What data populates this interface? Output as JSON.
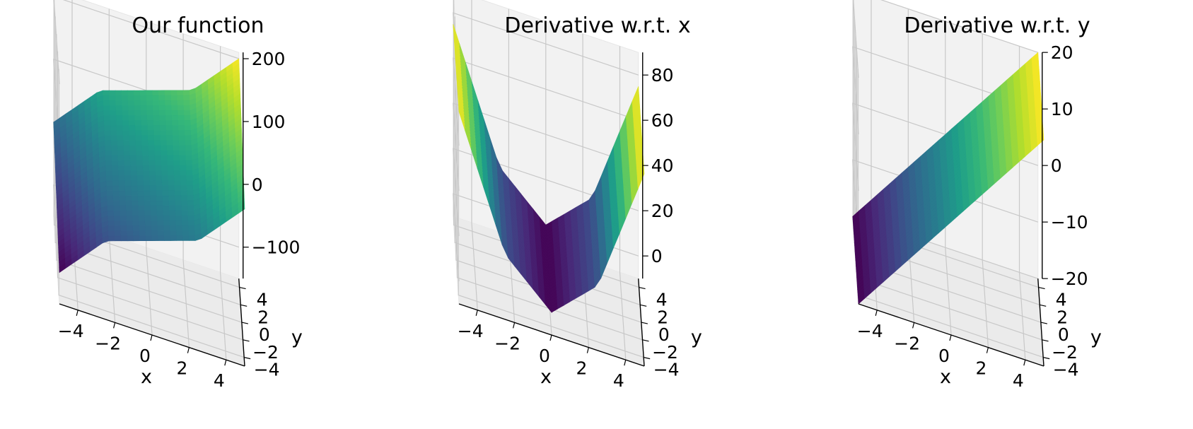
{
  "chart_data": [
    {
      "type": "surface3d",
      "title": "Our function",
      "xlabel": "x",
      "ylabel": "y",
      "zlabel": "",
      "xlim": [
        -5,
        5
      ],
      "ylim": [
        -5,
        5
      ],
      "zlim": [
        -150,
        210
      ],
      "xticks": [
        -4,
        -2,
        0,
        2,
        4
      ],
      "yticks": [
        -4,
        -2,
        0,
        2,
        4
      ],
      "zticks": [
        -100,
        0,
        100,
        200
      ],
      "xtick_labels": [
        "−4",
        "−2",
        "0",
        "2",
        "4"
      ],
      "ytick_labels": [
        "−4",
        "−2",
        "0",
        "2",
        "4"
      ],
      "ztick_labels": [
        "−100",
        "0",
        "100",
        "200"
      ],
      "grid": true,
      "colormap": "viridis",
      "surface": {
        "x": [
          -5,
          -2.5,
          0,
          2.5,
          5
        ],
        "y": [
          -5,
          -2.5,
          0,
          2.5,
          5
        ],
        "z": [
          [
            -100,
            -25,
            0,
            25,
            100
          ],
          [
            -75,
            0,
            25,
            50,
            125
          ],
          [
            -50,
            25,
            50,
            75,
            150
          ],
          [
            -25,
            50,
            75,
            100,
            175
          ],
          [
            0,
            75,
            100,
            125,
            200
          ]
        ]
      }
    },
    {
      "type": "surface3d",
      "title": "Derivative w.r.t. x",
      "xlabel": "x",
      "ylabel": "y",
      "zlabel": "",
      "xlim": [
        -5,
        5
      ],
      "ylim": [
        -5,
        5
      ],
      "zlim": [
        -10,
        90
      ],
      "xticks": [
        -4,
        -2,
        0,
        2,
        4
      ],
      "yticks": [
        -4,
        -2,
        0,
        2,
        4
      ],
      "zticks": [
        0,
        20,
        40,
        60,
        80
      ],
      "xtick_labels": [
        "−4",
        "−2",
        "0",
        "2",
        "4"
      ],
      "ytick_labels": [
        "−4",
        "−2",
        "0",
        "2",
        "4"
      ],
      "ztick_labels": [
        "0",
        "20",
        "40",
        "60",
        "80"
      ],
      "grid": true,
      "colormap": "viridis",
      "surface": {
        "x": [
          -5,
          -2.5,
          0,
          2.5,
          5
        ],
        "y": [
          -5,
          -2.5,
          0,
          2.5,
          5
        ],
        "z": [
          [
            75,
            18.75,
            0,
            18.75,
            75
          ],
          [
            75,
            18.75,
            0,
            18.75,
            75
          ],
          [
            75,
            18.75,
            0,
            18.75,
            75
          ],
          [
            75,
            18.75,
            0,
            18.75,
            75
          ],
          [
            75,
            18.75,
            0,
            18.75,
            75
          ]
        ]
      }
    },
    {
      "type": "surface3d",
      "title": "Derivative w.r.t. y",
      "xlabel": "x",
      "ylabel": "y",
      "zlabel": "",
      "xlim": [
        -5,
        5
      ],
      "ylim": [
        -5,
        5
      ],
      "zlim": [
        -20,
        20
      ],
      "xticks": [
        -4,
        -2,
        0,
        2,
        4
      ],
      "yticks": [
        -4,
        -2,
        0,
        2,
        4
      ],
      "zticks": [
        -20,
        -10,
        0,
        10,
        20
      ],
      "xtick_labels": [
        "−4",
        "−2",
        "0",
        "2",
        "4"
      ],
      "ytick_labels": [
        "−4",
        "−2",
        "0",
        "2",
        "4"
      ],
      "ztick_labels": [
        "−20",
        "−10",
        "0",
        "10",
        "20"
      ],
      "grid": true,
      "colormap": "viridis",
      "surface": {
        "x": [
          -5,
          -2.5,
          0,
          2.5,
          5
        ],
        "y": [
          -5,
          -2.5,
          0,
          2.5,
          5
        ],
        "z": [
          [
            -20,
            -10,
            0,
            10,
            20
          ],
          [
            -20,
            -10,
            0,
            10,
            20
          ],
          [
            -20,
            -10,
            0,
            10,
            20
          ],
          [
            -20,
            -10,
            0,
            10,
            20
          ],
          [
            -20,
            -10,
            0,
            10,
            20
          ]
        ]
      }
    }
  ]
}
